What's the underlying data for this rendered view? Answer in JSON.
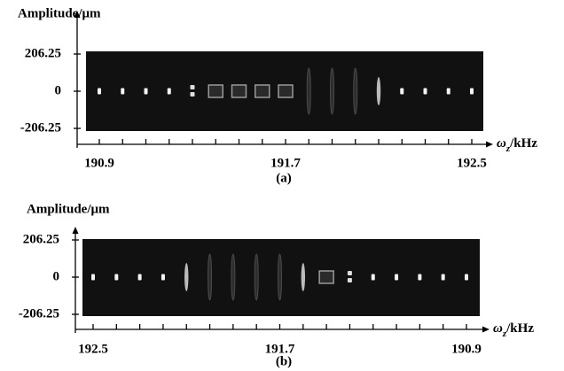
{
  "chart_data": [
    {
      "type": "image",
      "y_label": "Amplitude/μm",
      "x_label": {
        "symbol": "ω",
        "subscript": "z",
        "unit": "/kHz"
      },
      "caption": "(a)",
      "xlim": [
        190.9,
        192.5
      ],
      "xticks": [
        190.9,
        191.7,
        192.5
      ],
      "xminorticks": [
        191.0,
        191.1,
        191.2,
        191.3,
        191.4,
        191.5,
        191.6,
        191.8,
        191.9,
        192.0,
        192.1,
        192.2,
        192.3,
        192.4
      ],
      "ylim": [
        -206.25,
        206.25
      ],
      "yticks": [
        206.25,
        0,
        -206.25
      ]
    },
    {
      "type": "image",
      "y_label": "Amplitude/μm",
      "x_label": {
        "symbol": "ω",
        "subscript": "z",
        "unit": "/kHz"
      },
      "caption": "(b)",
      "xlim": [
        192.5,
        190.9
      ],
      "xticks": [
        192.5,
        191.7,
        190.9
      ],
      "xminorticks": [
        192.4,
        192.3,
        192.2,
        192.1,
        192.0,
        191.9,
        191.8,
        191.6,
        191.5,
        191.4,
        191.3,
        191.2,
        191.1,
        191.0
      ],
      "ylim": [
        -206.25,
        206.25
      ],
      "yticks": [
        206.25,
        0,
        -206.25
      ]
    }
  ]
}
